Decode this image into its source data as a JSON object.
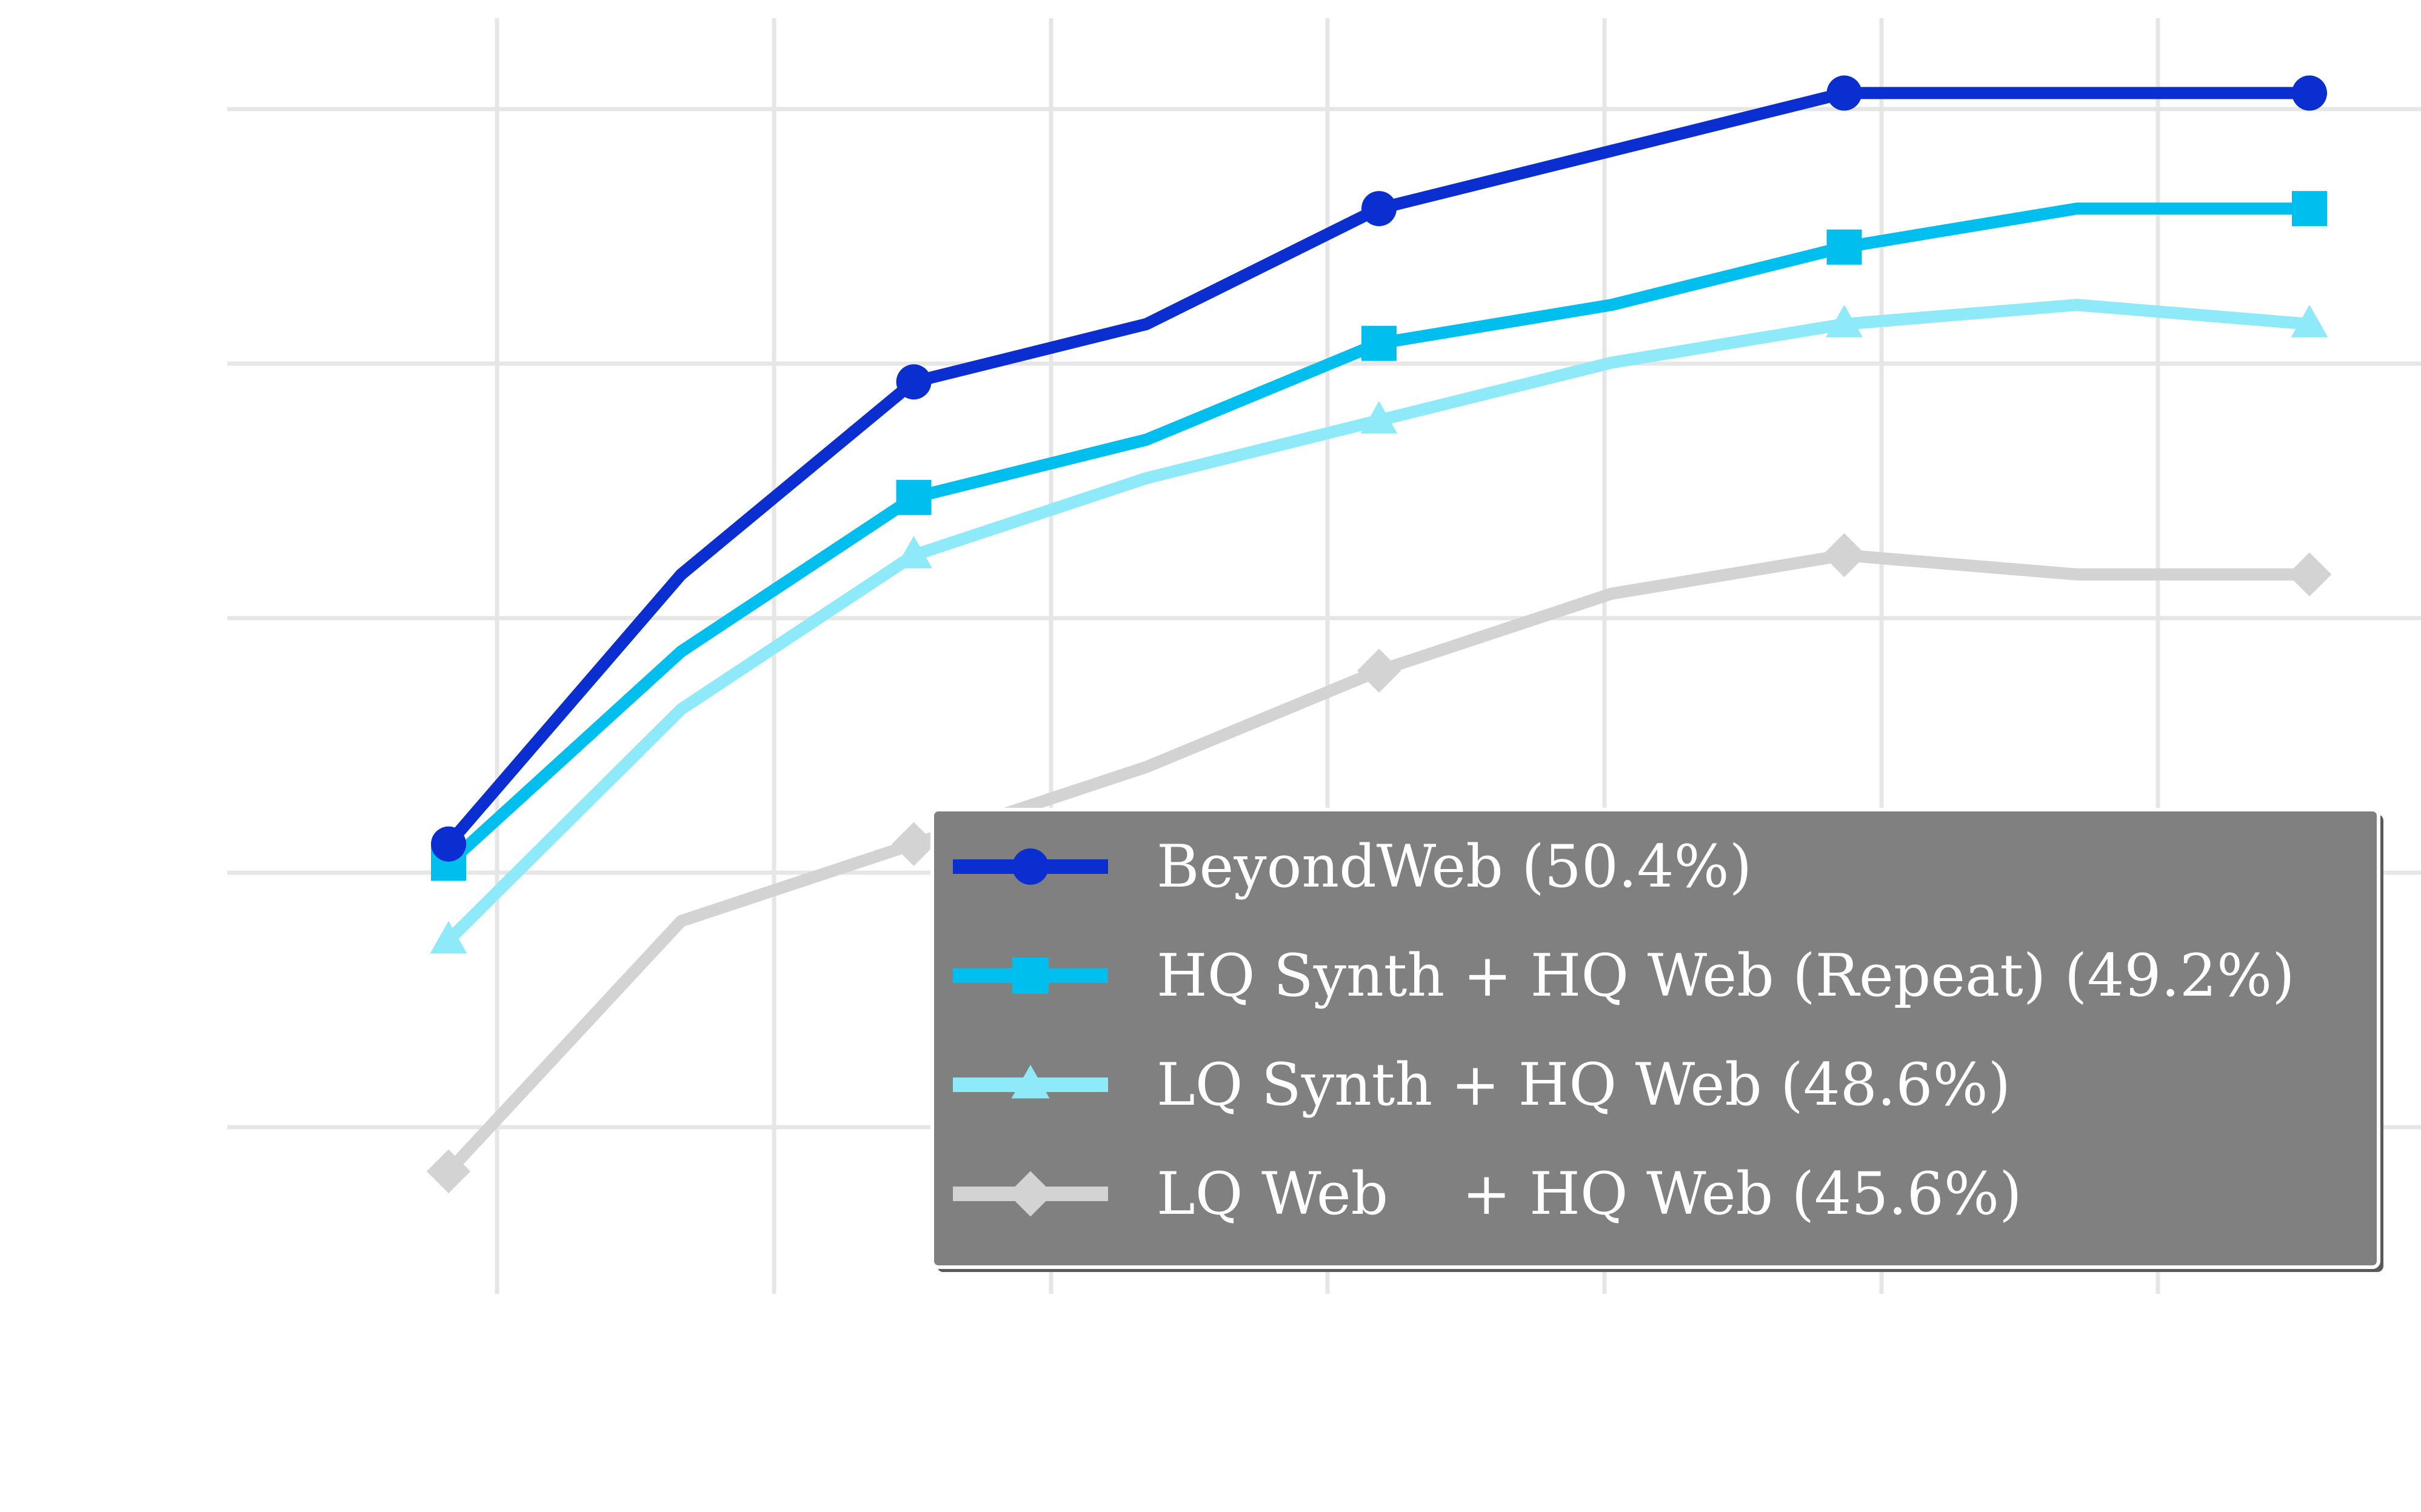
{
  "chart_data": {
    "type": "line",
    "title": "",
    "xlabel": "",
    "ylabel": "",
    "x": [
      1,
      2,
      3,
      4,
      5,
      6,
      7,
      8,
      9
    ],
    "xlim": [
      0.8,
      9.2
    ],
    "ylim": [
      44.5,
      50.7
    ],
    "grid": true,
    "legend_position": "bottom-right",
    "series": [
      {
        "name": "BeyondWeb (50.4%)",
        "color": "#0a2ecf",
        "marker": "circle",
        "values": [
          46.6,
          48.0,
          49.0,
          49.3,
          49.9,
          50.2,
          50.5,
          50.5,
          50.5
        ]
      },
      {
        "name": "HQ Synth + HQ Web (Repeat) (49.2%)",
        "color": "#00bfee",
        "marker": "square",
        "values": [
          46.5,
          47.6,
          48.4,
          48.7,
          49.2,
          49.4,
          49.7,
          49.9,
          49.9
        ]
      },
      {
        "name": "LQ Synth + HQ Web (48.6%)",
        "color": "#8ee9f8",
        "marker": "triangle",
        "values": [
          46.1,
          47.3,
          48.1,
          48.5,
          48.8,
          49.1,
          49.3,
          49.4,
          49.3
        ]
      },
      {
        "name": "LQ Web    + HQ Web (45.6%)",
        "color": "#d3d3d3",
        "marker": "diamond",
        "values": [
          44.9,
          46.2,
          46.6,
          47.0,
          47.5,
          47.9,
          48.1,
          48.0,
          48.0
        ]
      }
    ]
  }
}
